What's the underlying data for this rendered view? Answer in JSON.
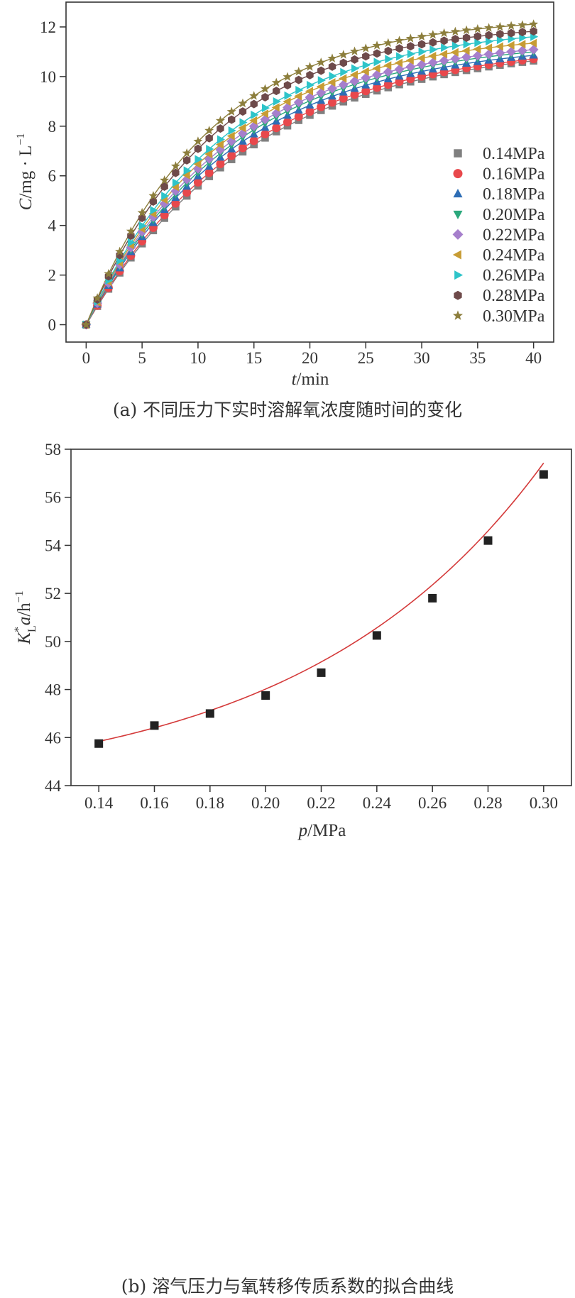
{
  "chart_data": [
    {
      "type": "line",
      "xlabel_var": "t",
      "xlabel_unit": "/min",
      "ylabel_var": "C",
      "ylabel_unit": "/mg · L",
      "ylabel_sup": "−1",
      "xlim": [
        -1.8,
        41.8
      ],
      "ylim": [
        -0.7,
        13
      ],
      "xticks": [
        0,
        5,
        10,
        15,
        20,
        25,
        30,
        35,
        40
      ],
      "yticks": [
        0,
        2,
        4,
        6,
        8,
        10,
        12
      ],
      "x": [
        0,
        1,
        2,
        3,
        4,
        5,
        6,
        7,
        8,
        9,
        10,
        11,
        12,
        13,
        14,
        15,
        16,
        17,
        18,
        19,
        20,
        21,
        22,
        23,
        24,
        25,
        26,
        27,
        28,
        29,
        30,
        31,
        32,
        33,
        34,
        35,
        36,
        37,
        38,
        39,
        40
      ],
      "caption": "(a) 不同压力下实时溶解氧浓度随时间的变化",
      "legend_position": "lower-right",
      "series": [
        {
          "name": "0.14MPa",
          "marker": "square",
          "color": "#7f7f7f",
          "Cmax": 11.4,
          "k": 0.0675
        },
        {
          "name": "0.16MPa",
          "marker": "circle",
          "color": "#e8484c",
          "Cmax": 11.4,
          "k": 0.07
        },
        {
          "name": "0.18MPa",
          "marker": "triangle-up",
          "color": "#2e6db5",
          "Cmax": 11.45,
          "k": 0.074
        },
        {
          "name": "0.20MPa",
          "marker": "triangle-down",
          "color": "#2ba87c",
          "Cmax": 11.55,
          "k": 0.076
        },
        {
          "name": "0.22MPa",
          "marker": "diamond",
          "color": "#a67fcc",
          "Cmax": 11.6,
          "k": 0.078
        },
        {
          "name": "0.24MPa",
          "marker": "triangle-left",
          "color": "#c79c34",
          "Cmax": 11.85,
          "k": 0.079
        },
        {
          "name": "0.26MPa",
          "marker": "triangle-right",
          "color": "#2ec4c9",
          "Cmax": 12.1,
          "k": 0.08
        },
        {
          "name": "0.28MPa",
          "marker": "hexagon",
          "color": "#6e4a4a",
          "Cmax": 12.2,
          "k": 0.087
        },
        {
          "name": "0.30MPa",
          "marker": "star",
          "color": "#8c7e3c",
          "Cmax": 12.45,
          "k": 0.09
        }
      ]
    },
    {
      "type": "scatter",
      "xlabel_var": "p",
      "xlabel_unit": "/MPa",
      "ylabel_K": "K",
      "ylabel_sup": "*",
      "ylabel_sub": "L",
      "ylabel_a": "a",
      "ylabel_unit": "/h",
      "ylabel_unit_sup": "−1",
      "xlim": [
        0.13,
        0.31
      ],
      "ylim": [
        44,
        58
      ],
      "xticks": [
        "0.14",
        "0.16",
        "0.18",
        "0.20",
        "0.22",
        "0.24",
        "0.26",
        "0.28",
        "0.30"
      ],
      "yticks": [
        44,
        46,
        48,
        50,
        52,
        54,
        56,
        58
      ],
      "x": [
        0.14,
        0.16,
        0.18,
        0.2,
        0.22,
        0.24,
        0.26,
        0.28,
        0.3
      ],
      "y": [
        45.75,
        46.5,
        47.0,
        47.75,
        48.7,
        50.25,
        51.8,
        54.2,
        56.95
      ],
      "fit": {
        "type": "exponential",
        "y0": 43.64,
        "A": 2.2,
        "x0": 0.14,
        "b": 11.47,
        "color": "#d43a3a"
      },
      "marker_color": "#222222",
      "caption": "(b) 溶气压力与氧转移传质系数的拟合曲线"
    }
  ]
}
